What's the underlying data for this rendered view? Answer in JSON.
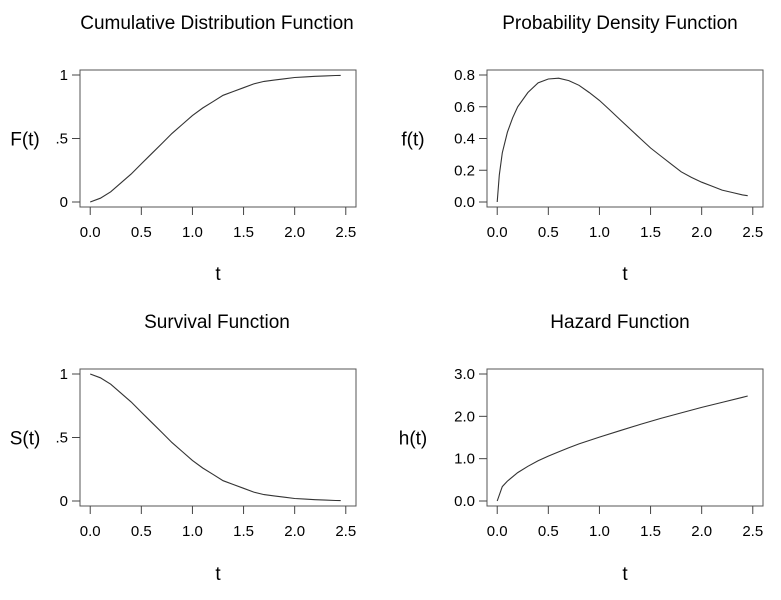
{
  "chart_data": [
    {
      "type": "line",
      "title": "Cumulative Distribution Function",
      "xlabel": "t",
      "ylabel": "F(t)",
      "xlim": [
        0.0,
        2.5
      ],
      "ylim": [
        0,
        1
      ],
      "x_ticks": [
        "0.0",
        "0.5",
        "1.0",
        "1.5",
        "2.0",
        "2.5"
      ],
      "y_ticks": [
        "0",
        ".5",
        "1"
      ],
      "y_tick_values": [
        0,
        0.5,
        1
      ],
      "grid": false,
      "series": [
        {
          "x": [
            0.0,
            0.1,
            0.2,
            0.3,
            0.4,
            0.5,
            0.6,
            0.7,
            0.8,
            0.9,
            1.0,
            1.1,
            1.2,
            1.3,
            1.4,
            1.5,
            1.6,
            1.7,
            1.8,
            1.9,
            2.0,
            2.1,
            2.2,
            2.3,
            2.4,
            2.45
          ],
          "values": [
            0.0,
            0.03,
            0.08,
            0.15,
            0.22,
            0.3,
            0.38,
            0.46,
            0.54,
            0.61,
            0.68,
            0.74,
            0.79,
            0.84,
            0.87,
            0.9,
            0.93,
            0.95,
            0.96,
            0.97,
            0.98,
            0.985,
            0.99,
            0.993,
            0.996,
            0.997
          ]
        }
      ]
    },
    {
      "type": "line",
      "title": "Probability Density Function",
      "xlabel": "t",
      "ylabel": "f(t)",
      "xlim": [
        0.0,
        2.5
      ],
      "ylim": [
        0.0,
        0.8
      ],
      "x_ticks": [
        "0.0",
        "0.5",
        "1.0",
        "1.5",
        "2.0",
        "2.5"
      ],
      "y_ticks": [
        "0.0",
        "0.2",
        "0.4",
        "0.6",
        "0.8"
      ],
      "y_tick_values": [
        0.0,
        0.2,
        0.4,
        0.6,
        0.8
      ],
      "grid": false,
      "series": [
        {
          "x": [
            0.0,
            0.02,
            0.05,
            0.1,
            0.15,
            0.2,
            0.3,
            0.4,
            0.5,
            0.6,
            0.7,
            0.8,
            0.9,
            1.0,
            1.1,
            1.2,
            1.3,
            1.4,
            1.5,
            1.6,
            1.7,
            1.8,
            1.9,
            2.0,
            2.1,
            2.2,
            2.3,
            2.4,
            2.45
          ],
          "values": [
            0.0,
            0.17,
            0.31,
            0.44,
            0.53,
            0.6,
            0.69,
            0.75,
            0.775,
            0.78,
            0.765,
            0.735,
            0.69,
            0.64,
            0.58,
            0.52,
            0.46,
            0.4,
            0.34,
            0.29,
            0.24,
            0.19,
            0.155,
            0.125,
            0.1,
            0.075,
            0.06,
            0.045,
            0.04
          ]
        }
      ]
    },
    {
      "type": "line",
      "title": "Survival Function",
      "xlabel": "t",
      "ylabel": "S(t)",
      "xlim": [
        0.0,
        2.5
      ],
      "ylim": [
        0,
        1
      ],
      "x_ticks": [
        "0.0",
        "0.5",
        "1.0",
        "1.5",
        "2.0",
        "2.5"
      ],
      "y_ticks": [
        "0",
        ".5",
        "1"
      ],
      "y_tick_values": [
        0,
        0.5,
        1
      ],
      "grid": false,
      "series": [
        {
          "x": [
            0.0,
            0.1,
            0.2,
            0.3,
            0.4,
            0.5,
            0.6,
            0.7,
            0.8,
            0.9,
            1.0,
            1.1,
            1.2,
            1.3,
            1.4,
            1.5,
            1.6,
            1.7,
            1.8,
            1.9,
            2.0,
            2.1,
            2.2,
            2.3,
            2.4,
            2.45
          ],
          "values": [
            1.0,
            0.97,
            0.92,
            0.85,
            0.78,
            0.7,
            0.62,
            0.54,
            0.46,
            0.39,
            0.32,
            0.26,
            0.21,
            0.16,
            0.13,
            0.1,
            0.07,
            0.05,
            0.04,
            0.03,
            0.02,
            0.015,
            0.01,
            0.007,
            0.004,
            0.003
          ]
        }
      ]
    },
    {
      "type": "line",
      "title": "Hazard Function",
      "xlabel": "t",
      "ylabel": "h(t)",
      "xlim": [
        0.0,
        2.5
      ],
      "ylim": [
        0.0,
        3.0
      ],
      "x_ticks": [
        "0.0",
        "0.5",
        "1.0",
        "1.5",
        "2.0",
        "2.5"
      ],
      "y_ticks": [
        "0.0",
        "1.0",
        "2.0",
        "3.0"
      ],
      "y_tick_values": [
        0.0,
        1.0,
        2.0,
        3.0
      ],
      "grid": false,
      "series": [
        {
          "x": [
            0.0,
            0.05,
            0.1,
            0.2,
            0.3,
            0.4,
            0.5,
            0.6,
            0.7,
            0.8,
            0.9,
            1.0,
            1.2,
            1.4,
            1.6,
            1.8,
            2.0,
            2.2,
            2.4,
            2.45
          ],
          "values": [
            0.0,
            0.34,
            0.47,
            0.67,
            0.82,
            0.95,
            1.06,
            1.16,
            1.26,
            1.35,
            1.43,
            1.51,
            1.66,
            1.81,
            1.95,
            2.08,
            2.21,
            2.33,
            2.45,
            2.48
          ]
        }
      ]
    }
  ]
}
